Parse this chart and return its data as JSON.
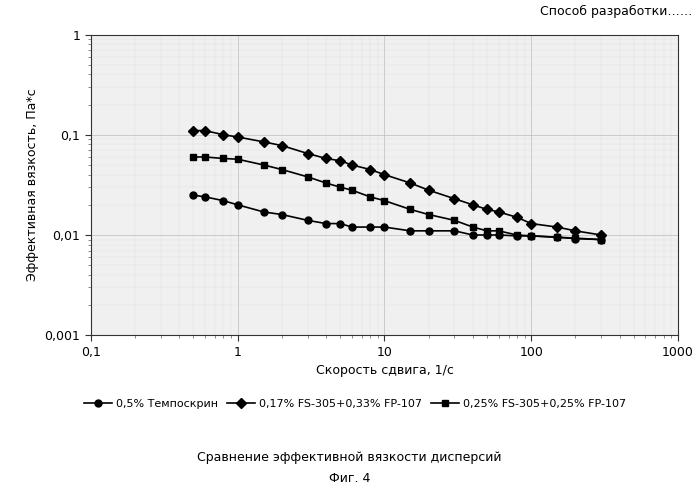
{
  "title_top_right": "Способ разработки……",
  "xlabel": "Скорость сдвига, 1/с",
  "ylabel": "Эффективная вязкость, Па*с",
  "caption_line1": "Сравнение эффективной вязкости дисперсий",
  "caption_line2": "Фиг. 4",
  "xlim": [
    0.1,
    1000
  ],
  "ylim": [
    0.001,
    1
  ],
  "series": [
    {
      "label": "0,5% Темпоскрин",
      "marker": "o",
      "color": "#000000",
      "x": [
        0.5,
        0.6,
        0.8,
        1.0,
        1.5,
        2.0,
        3.0,
        4.0,
        5.0,
        6.0,
        8.0,
        10.0,
        15.0,
        20.0,
        30.0,
        40.0,
        50.0,
        60.0,
        80.0,
        100.0,
        150.0,
        200.0,
        300.0
      ],
      "y": [
        0.025,
        0.024,
        0.022,
        0.02,
        0.017,
        0.016,
        0.014,
        0.013,
        0.013,
        0.012,
        0.012,
        0.012,
        0.011,
        0.011,
        0.011,
        0.01,
        0.01,
        0.01,
        0.0098,
        0.0098,
        0.0095,
        0.0092,
        0.009
      ]
    },
    {
      "label": "0,17% FS-305+0,33% FP-107",
      "marker": "D",
      "color": "#000000",
      "x": [
        0.5,
        0.6,
        0.8,
        1.0,
        1.5,
        2.0,
        3.0,
        4.0,
        5.0,
        6.0,
        8.0,
        10.0,
        15.0,
        20.0,
        30.0,
        40.0,
        50.0,
        60.0,
        80.0,
        100.0,
        150.0,
        200.0,
        300.0
      ],
      "y": [
        0.11,
        0.11,
        0.1,
        0.095,
        0.085,
        0.078,
        0.065,
        0.058,
        0.055,
        0.05,
        0.045,
        0.04,
        0.033,
        0.028,
        0.023,
        0.02,
        0.018,
        0.017,
        0.015,
        0.013,
        0.012,
        0.011,
        0.01
      ]
    },
    {
      "label": "0,25% FS-305+0,25% FP-107",
      "marker": "s",
      "color": "#000000",
      "x": [
        0.5,
        0.6,
        0.8,
        1.0,
        1.5,
        2.0,
        3.0,
        4.0,
        5.0,
        6.0,
        8.0,
        10.0,
        15.0,
        20.0,
        30.0,
        40.0,
        50.0,
        60.0,
        80.0,
        100.0,
        150.0,
        200.0,
        300.0
      ],
      "y": [
        0.06,
        0.06,
        0.058,
        0.057,
        0.05,
        0.045,
        0.038,
        0.033,
        0.03,
        0.028,
        0.024,
        0.022,
        0.018,
        0.016,
        0.014,
        0.012,
        0.011,
        0.011,
        0.01,
        0.0098,
        0.0095,
        0.0093,
        0.009
      ]
    }
  ],
  "background_color": "#ffffff",
  "plot_bg_color": "#f0f0f0",
  "grid_major_color": "#bbbbbb",
  "grid_minor_color": "#dddddd",
  "line_color": "#000000",
  "font_color": "#000000",
  "markersize": 5,
  "linewidth": 1.2
}
